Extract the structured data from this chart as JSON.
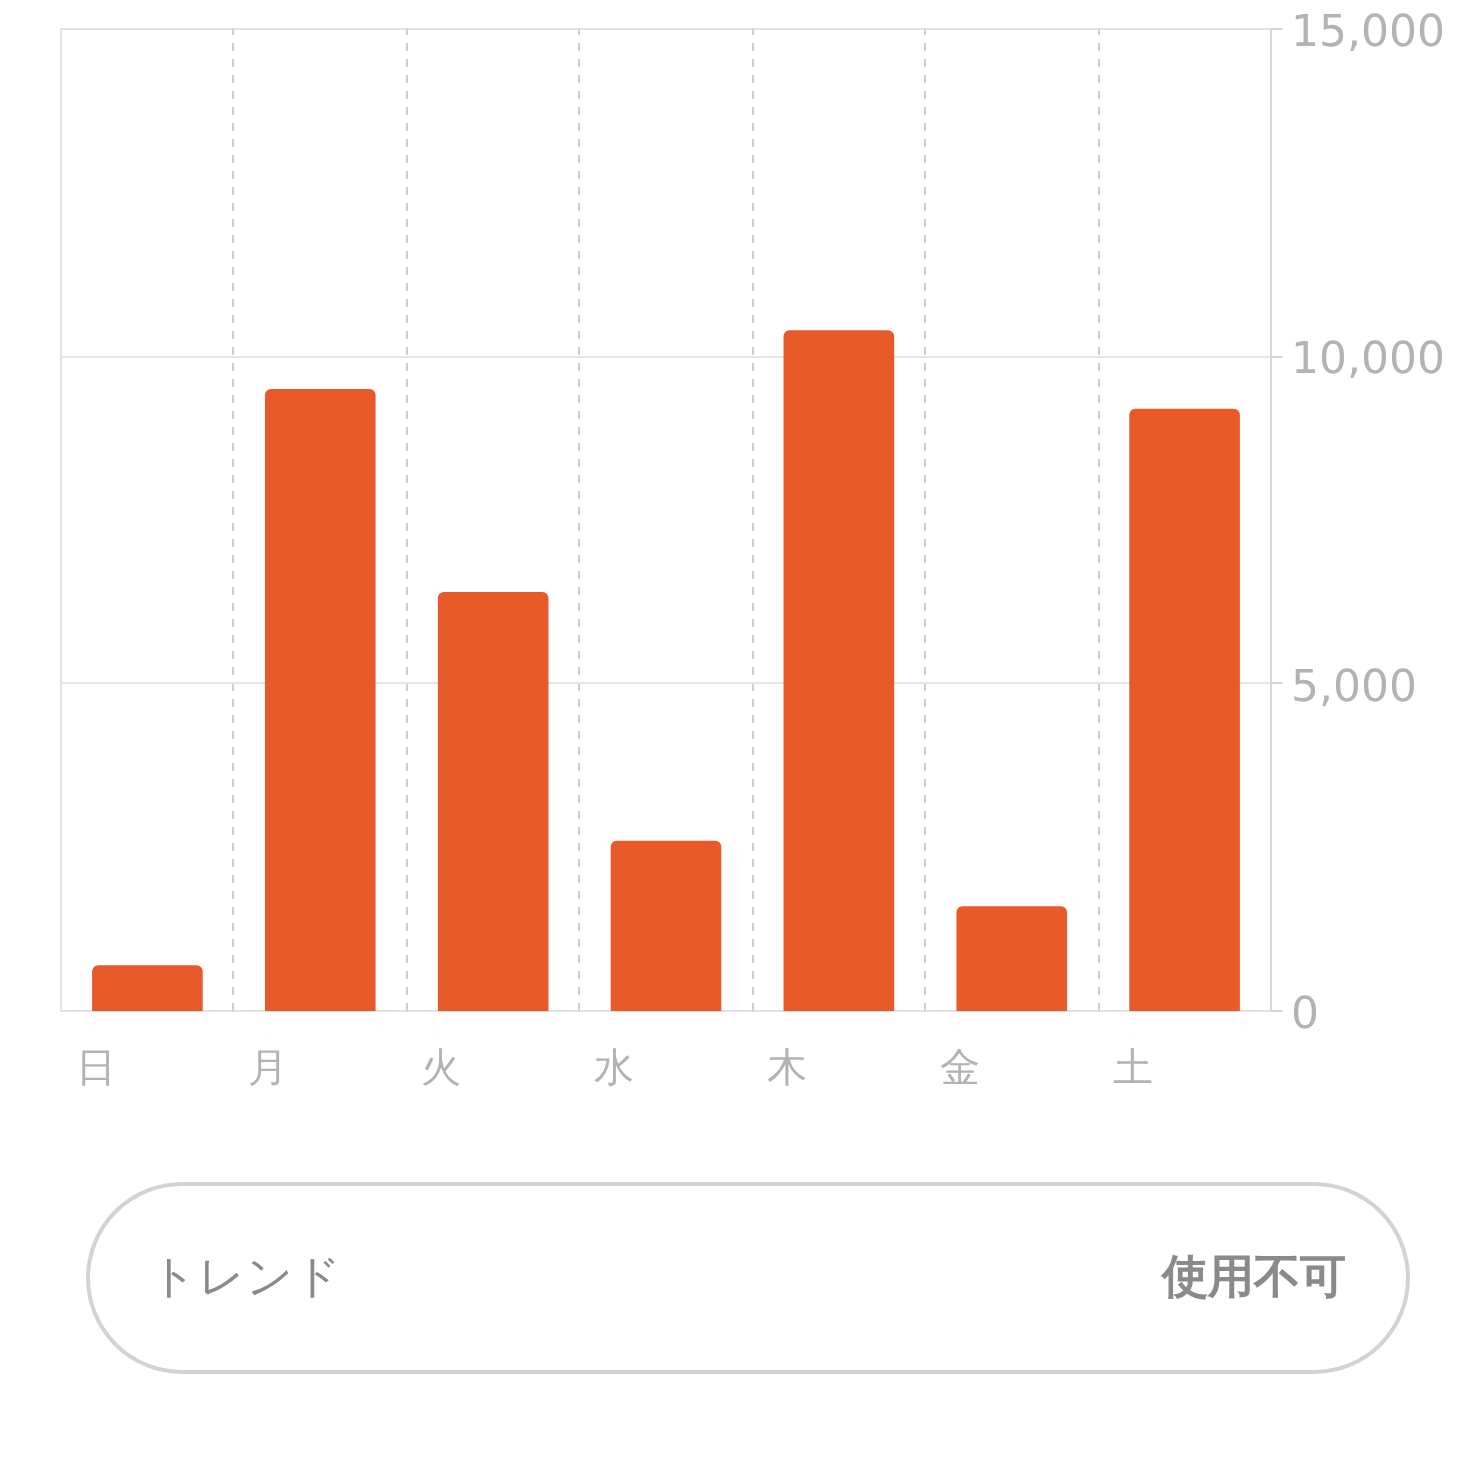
{
  "chart_data": {
    "type": "bar",
    "categories": [
      "日",
      "月",
      "火",
      "水",
      "木",
      "金",
      "土"
    ],
    "values": [
      700,
      9500,
      6400,
      2600,
      10400,
      1600,
      9200
    ],
    "color": "#e95a2b",
    "ylim": [
      0,
      15000
    ],
    "yticks": [
      0,
      {
        "value": 5000,
        "label": "5,000"
      },
      {
        "value": 10000,
        "label": "10,000"
      },
      {
        "value": 15000,
        "label": "15,000"
      }
    ],
    "grid": true,
    "annotations": [
      "トレンド",
      "使用不可"
    ]
  }
}
